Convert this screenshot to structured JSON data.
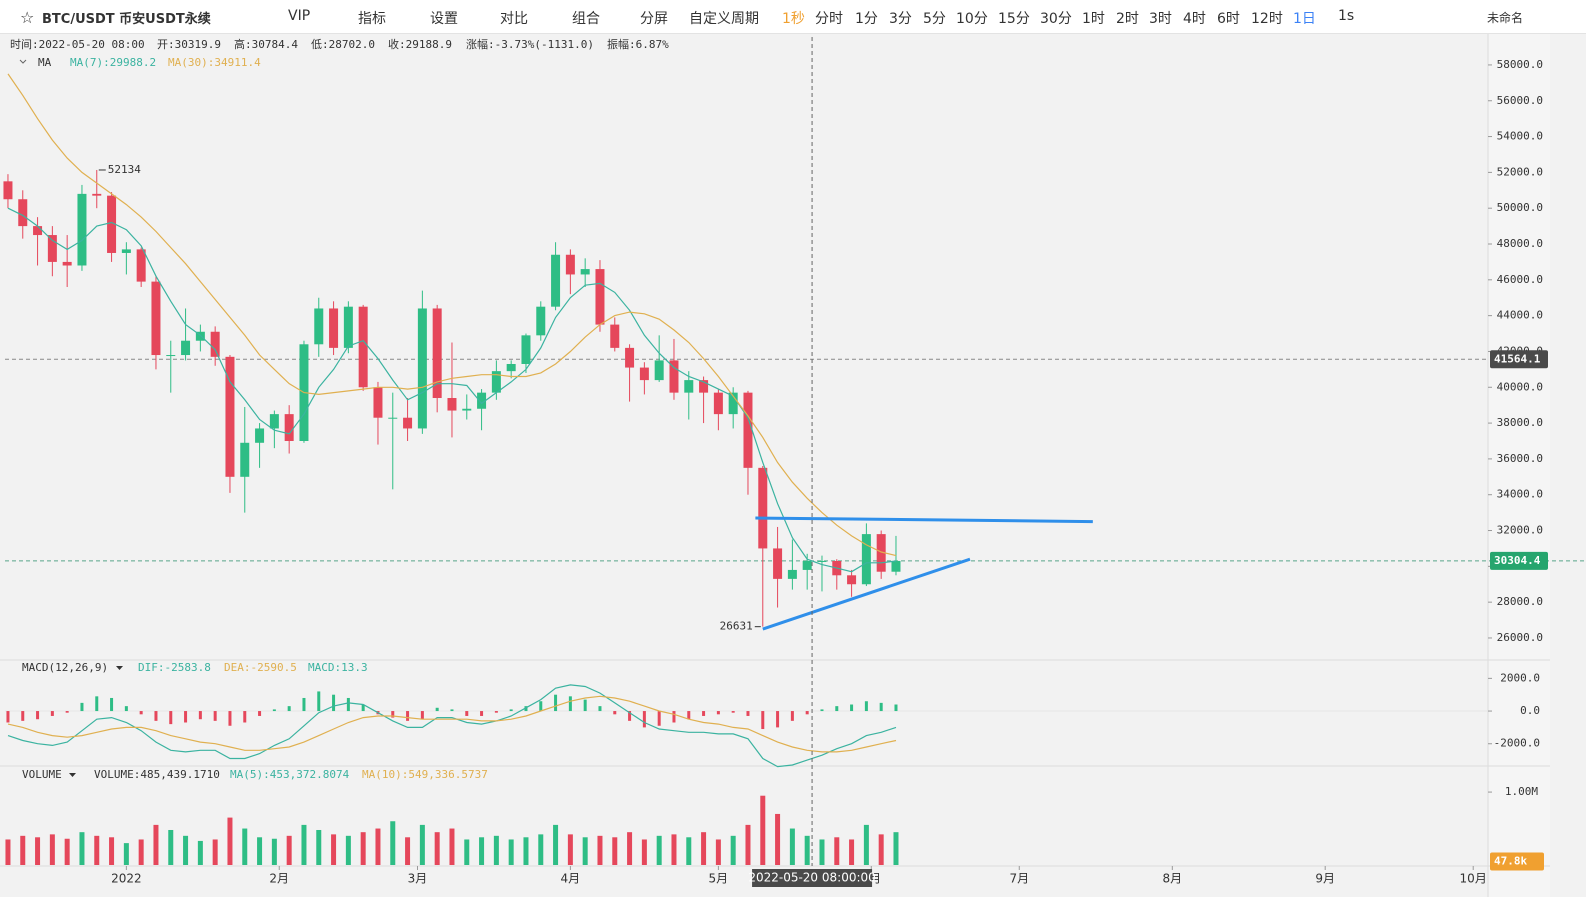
{
  "toolbar": {
    "symbol": "BTC/USDT 币安USDT永续",
    "vip": "VIP",
    "indicators": "指标",
    "settings": "设置",
    "compare": "对比",
    "combine": "组合",
    "split": "分屏",
    "custom": "自定义周期",
    "intervals": [
      "1秒",
      "分时",
      "1分",
      "3分",
      "5分",
      "10分",
      "15分",
      "30分",
      "1时",
      "2时",
      "3时",
      "4时",
      "6时",
      "12时",
      "1日"
    ],
    "speed": "1s",
    "layout": "未命名"
  },
  "chart_data": {
    "type": "candlestick",
    "info": [
      "时间:2022-05-20 08:00",
      "开:30319.9",
      "高:30784.4",
      "低:28702.0",
      "收:29188.9",
      "涨幅:-3.73%(-1131.0)",
      "振幅:6.87%"
    ],
    "ma_title": "MA",
    "up_color": "#2ebd85",
    "down_color": "#e5475b",
    "xlim": [
      -0.2,
      100
    ],
    "xticks": [
      {
        "value": 8,
        "label": "2022"
      },
      {
        "value": 18.33,
        "label": "2月"
      },
      {
        "value": 27.67,
        "label": "3月"
      },
      {
        "value": 38,
        "label": "4月"
      },
      {
        "value": 48,
        "label": "5月"
      },
      {
        "value": 58.33,
        "label": "6月"
      },
      {
        "value": 68.33,
        "label": "7月"
      },
      {
        "value": 78.67,
        "label": "8月"
      },
      {
        "value": 89,
        "label": "9月"
      },
      {
        "value": 99,
        "label": "10月"
      }
    ],
    "ylim": [
      24770,
      59560
    ],
    "yticks": [
      {
        "value": 26000,
        "label": "26000.0"
      },
      {
        "value": 28000,
        "label": "28000.0"
      },
      {
        "value": 30000,
        "label": "30000.0"
      },
      {
        "value": 32000,
        "label": "32000.0"
      },
      {
        "value": 34000,
        "label": "34000.0"
      },
      {
        "value": 36000,
        "label": "36000.0"
      },
      {
        "value": 38000,
        "label": "38000.0"
      },
      {
        "value": 40000,
        "label": "40000.0"
      },
      {
        "value": 42000,
        "label": "42000.0"
      },
      {
        "value": 44000,
        "label": "44000.0"
      },
      {
        "value": 46000,
        "label": "46000.0"
      },
      {
        "value": 48000,
        "label": "48000.0"
      },
      {
        "value": 50000,
        "label": "50000.0"
      },
      {
        "value": 52000,
        "label": "52000.0"
      },
      {
        "value": 54000,
        "label": "54000.0"
      },
      {
        "value": 56000,
        "label": "56000.0"
      },
      {
        "value": 58000,
        "label": "58000.0"
      }
    ],
    "grid": false,
    "ohlc": [
      [
        51500,
        51900,
        50000,
        50500
      ],
      [
        50500,
        51000,
        48300,
        49000
      ],
      [
        49000,
        49500,
        46800,
        48500
      ],
      [
        48500,
        49000,
        46200,
        47000
      ],
      [
        47000,
        48500,
        45600,
        46800
      ],
      [
        46800,
        51300,
        46500,
        50800
      ],
      [
        50800,
        52134,
        50000,
        50700
      ],
      [
        50700,
        50900,
        47000,
        47500
      ],
      [
        47500,
        48100,
        46300,
        47700
      ],
      [
        47700,
        47800,
        45600,
        45900
      ],
      [
        45900,
        46200,
        41000,
        41800
      ],
      [
        41800,
        42600,
        39700,
        41800
      ],
      [
        41800,
        44400,
        41500,
        42600
      ],
      [
        42600,
        43500,
        42000,
        43100
      ],
      [
        43100,
        43400,
        41200,
        41700
      ],
      [
        41700,
        41800,
        34100,
        35000
      ],
      [
        35000,
        38900,
        33000,
        36900
      ],
      [
        36900,
        38000,
        35500,
        37700
      ],
      [
        37700,
        38700,
        36600,
        38500
      ],
      [
        38500,
        39000,
        36300,
        37000
      ],
      [
        37000,
        42600,
        36900,
        42400
      ],
      [
        42400,
        45000,
        41700,
        44400
      ],
      [
        44400,
        44800,
        41800,
        42200
      ],
      [
        42200,
        44800,
        41900,
        44500
      ],
      [
        44500,
        44600,
        39800,
        40000
      ],
      [
        40000,
        40300,
        36800,
        38300
      ],
      [
        38300,
        39700,
        34300,
        38300
      ],
      [
        38300,
        39400,
        37000,
        37700
      ],
      [
        37700,
        45400,
        37400,
        44400
      ],
      [
        44400,
        44600,
        38600,
        39400
      ],
      [
        39400,
        42500,
        37200,
        38700
      ],
      [
        38700,
        39600,
        38200,
        38800
      ],
      [
        38800,
        39900,
        37600,
        39700
      ],
      [
        39700,
        41500,
        39300,
        40900
      ],
      [
        40900,
        41500,
        40500,
        41300
      ],
      [
        41300,
        43000,
        40800,
        42900
      ],
      [
        42900,
        44800,
        42600,
        44500
      ],
      [
        44500,
        48100,
        44300,
        47400
      ],
      [
        47400,
        47700,
        45200,
        46300
      ],
      [
        46300,
        47200,
        45600,
        46600
      ],
      [
        46600,
        47100,
        43100,
        43500
      ],
      [
        43500,
        43900,
        42000,
        42200
      ],
      [
        42200,
        42400,
        39200,
        41100
      ],
      [
        41100,
        41400,
        39600,
        40400
      ],
      [
        40400,
        42900,
        40300,
        41500
      ],
      [
        41500,
        42700,
        39300,
        39700
      ],
      [
        39700,
        40900,
        38200,
        40400
      ],
      [
        40400,
        40600,
        38000,
        39700
      ],
      [
        39700,
        39900,
        37600,
        38500
      ],
      [
        38500,
        40000,
        37700,
        39700
      ],
      [
        39700,
        39800,
        34000,
        35500
      ],
      [
        35500,
        35600,
        26631,
        31000
      ],
      [
        31000,
        32200,
        27700,
        29300
      ],
      [
        29300,
        31500,
        28700,
        29800
      ],
      [
        29800,
        30700,
        28700,
        30300
      ],
      [
        30300,
        30600,
        28600,
        30300
      ],
      [
        30300,
        30400,
        28700,
        29500
      ],
      [
        29500,
        29800,
        28300,
        29000
      ],
      [
        29000,
        32400,
        28900,
        31800
      ],
      [
        31800,
        32000,
        29300,
        29700
      ],
      [
        29700,
        31700,
        29500,
        30300
      ]
    ],
    "series": [
      {
        "name": "MA(7):29988.2",
        "color": "#3bb3a0",
        "values": [
          50000,
          49600,
          49000,
          48200,
          47700,
          48200,
          49000,
          49200,
          48800,
          47900,
          46200,
          44800,
          43500,
          42900,
          42100,
          40300,
          39300,
          38200,
          37600,
          37400,
          38500,
          40000,
          41000,
          42300,
          42600,
          41600,
          40400,
          39300,
          39700,
          40200,
          40200,
          40100,
          39100,
          39700,
          40300,
          41000,
          42200,
          43900,
          45000,
          45700,
          45800,
          45300,
          44300,
          42900,
          41900,
          41100,
          40600,
          40300,
          39900,
          39500,
          38300,
          35800,
          33500,
          31600,
          30400,
          30100,
          29900,
          29700,
          30200,
          30200,
          30300
        ]
      },
      {
        "name": "MA(30):34911.4",
        "color": "#e0b050",
        "values": [
          57500,
          56300,
          55000,
          53800,
          52800,
          52000,
          51400,
          50800,
          50200,
          49500,
          48700,
          47800,
          46900,
          45900,
          44900,
          43900,
          42900,
          41800,
          41000,
          40200,
          39700,
          39600,
          39700,
          39800,
          39900,
          40000,
          40000,
          39900,
          40000,
          40300,
          40500,
          40600,
          40700,
          40700,
          40600,
          40600,
          40800,
          41300,
          42000,
          42800,
          43500,
          44000,
          44200,
          44100,
          43800,
          43200,
          42500,
          41600,
          40600,
          39500,
          38400,
          37200,
          35800,
          34700,
          33800,
          33000,
          32300,
          31700,
          31200,
          30800,
          30600
        ]
      }
    ],
    "extremes": [
      {
        "text": "52134",
        "x": 6,
        "value": 52134
      },
      {
        "text": "26631",
        "x": 51,
        "value": 26631
      }
    ],
    "trendlines": [
      {
        "color": "#2f8fea",
        "x": [
          50.5,
          73.3
        ],
        "values": [
          32700,
          32500
        ]
      },
      {
        "color": "#2f8fea",
        "x": [
          51,
          65
        ],
        "values": [
          26500,
          30400
        ]
      }
    ],
    "crosshair": {
      "x": 54.33,
      "x_label": "2022-05-20 08:00:00",
      "value": 41564.1
    },
    "last_price": 30304.4,
    "macd": {
      "title": "MACD(12,26,9)",
      "labels": [
        "DIF:-2583.8",
        "DEA:-2590.5",
        "MACD:13.3"
      ],
      "ylim": [
        -3300,
        3000
      ],
      "yticks": [
        {
          "value": 2000,
          "label": "2000.0"
        },
        {
          "value": 0,
          "label": "0.0"
        },
        {
          "value": -2000,
          "label": "-2000.0"
        }
      ],
      "hist": [
        -700,
        -600,
        -500,
        -300,
        -100,
        500,
        900,
        800,
        300,
        -200,
        -600,
        -800,
        -700,
        -500,
        -600,
        -900,
        -700,
        -300,
        100,
        300,
        800,
        1200,
        1000,
        800,
        400,
        -200,
        -400,
        -600,
        -500,
        200,
        100,
        -300,
        -300,
        -100,
        100,
        300,
        600,
        1000,
        900,
        700,
        300,
        -200,
        -600,
        -1000,
        -900,
        -700,
        -500,
        -300,
        -200,
        -100,
        -300,
        -1100,
        -1000,
        -600,
        -200,
        100,
        300,
        400,
        600,
        500,
        400
      ],
      "dif": [
        -1500,
        -1800,
        -2000,
        -2100,
        -1900,
        -1200,
        -500,
        -400,
        -700,
        -1200,
        -1900,
        -2400,
        -2500,
        -2400,
        -2400,
        -2900,
        -2900,
        -2600,
        -2100,
        -1700,
        -900,
        -100,
        300,
        500,
        400,
        -100,
        -600,
        -1000,
        -1000,
        -400,
        -400,
        -700,
        -800,
        -600,
        -300,
        200,
        700,
        1400,
        1600,
        1500,
        1100,
        500,
        -100,
        -700,
        -1100,
        -1200,
        -1300,
        -1300,
        -1400,
        -1400,
        -1700,
        -2900,
        -3400,
        -3300,
        -3000,
        -2700,
        -2300,
        -2000,
        -1500,
        -1300,
        -1000
      ],
      "dea": [
        -800,
        -1000,
        -1300,
        -1500,
        -1600,
        -1500,
        -1300,
        -1100,
        -1000,
        -1000,
        -1200,
        -1500,
        -1700,
        -1900,
        -2000,
        -2200,
        -2400,
        -2400,
        -2300,
        -2200,
        -1900,
        -1500,
        -1100,
        -700,
        -400,
        -300,
        -300,
        -400,
        -500,
        -500,
        -500,
        -500,
        -600,
        -600,
        -500,
        -300,
        0,
        300,
        600,
        800,
        900,
        800,
        600,
        300,
        0,
        -200,
        -500,
        -700,
        -800,
        -1000,
        -1100,
        -1500,
        -1900,
        -2200,
        -2400,
        -2500,
        -2500,
        -2400,
        -2200,
        -2000,
        -1800
      ]
    },
    "volume": {
      "title": "VOLUME",
      "labels": [
        "VOLUME:485,439.1710",
        "MA(5):453,372.8074",
        "MA(10):549,336.5737"
      ],
      "ylim": [
        0,
        1.33
      ],
      "yticks": [
        {
          "value": 1,
          "label": "1.00M"
        }
      ],
      "badge": {
        "value": 0.0478,
        "label": "47.8k"
      },
      "values": [
        0.35,
        0.4,
        0.38,
        0.42,
        0.36,
        0.45,
        0.4,
        0.38,
        0.3,
        0.35,
        0.55,
        0.48,
        0.4,
        0.33,
        0.35,
        0.65,
        0.5,
        0.38,
        0.36,
        0.4,
        0.55,
        0.48,
        0.42,
        0.4,
        0.45,
        0.5,
        0.6,
        0.38,
        0.55,
        0.45,
        0.5,
        0.35,
        0.38,
        0.4,
        0.35,
        0.38,
        0.42,
        0.55,
        0.42,
        0.38,
        0.4,
        0.38,
        0.45,
        0.35,
        0.4,
        0.42,
        0.38,
        0.45,
        0.35,
        0.4,
        0.55,
        0.95,
        0.7,
        0.5,
        0.4,
        0.35,
        0.38,
        0.35,
        0.55,
        0.42,
        0.45
      ]
    }
  }
}
